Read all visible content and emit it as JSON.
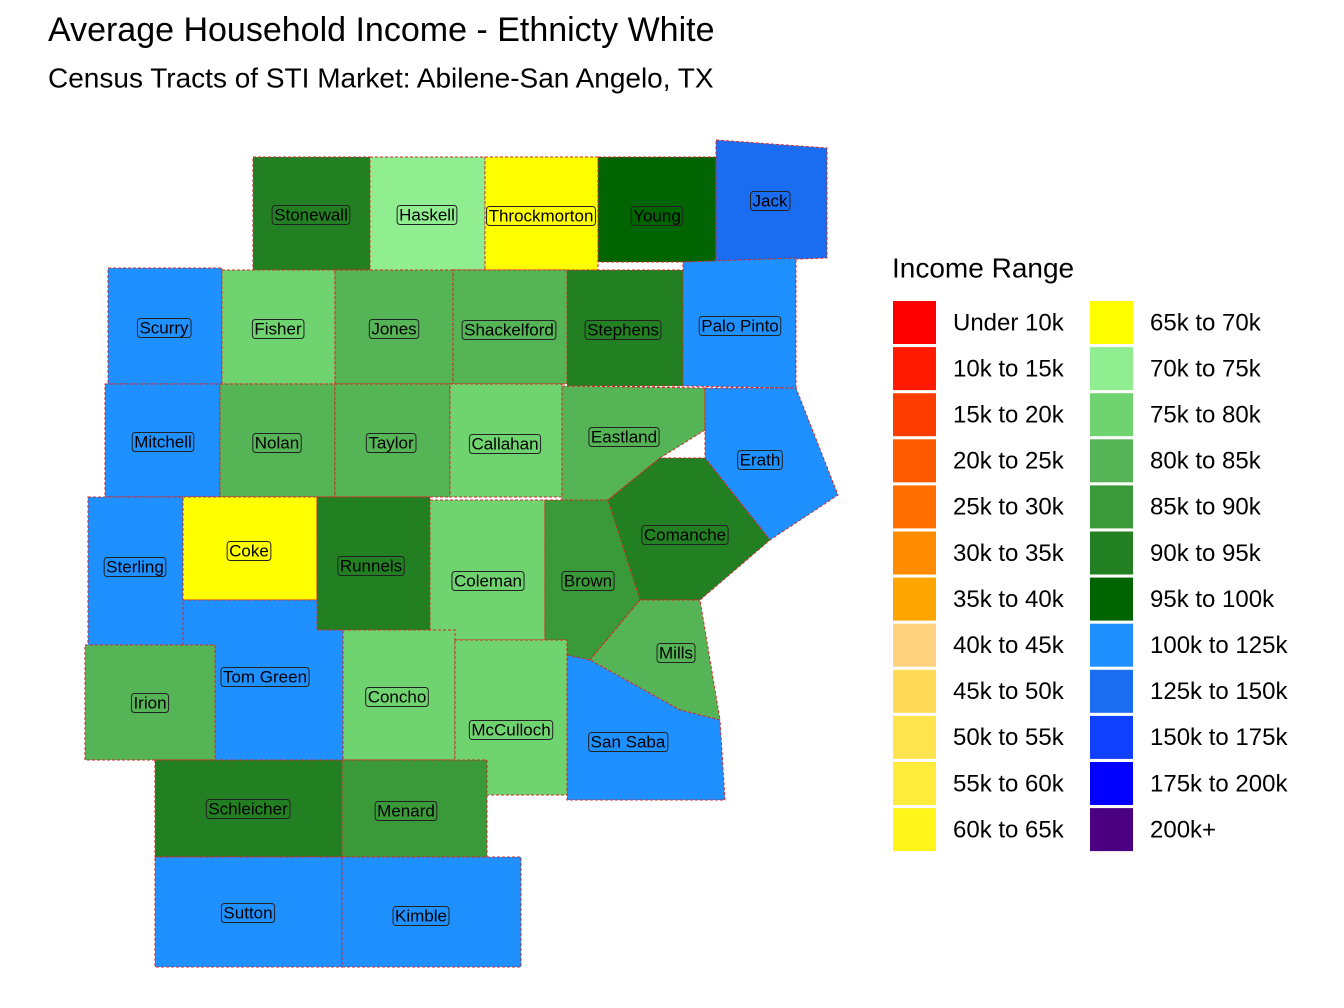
{
  "header": {
    "title": "Average Household Income - Ethnicty White",
    "subtitle": "Census Tracts of STI Market: Abilene-San Angelo, TX"
  },
  "legend": {
    "title": "Income Range",
    "entries": [
      {
        "label": "Under 10k",
        "color": "#ff0000"
      },
      {
        "label": "10k to 15k",
        "color": "#ff1a00"
      },
      {
        "label": "15k to 20k",
        "color": "#ff3d00"
      },
      {
        "label": "20k to 25k",
        "color": "#ff5a00"
      },
      {
        "label": "25k to 30k",
        "color": "#ff7000"
      },
      {
        "label": "30k to 35k",
        "color": "#ff8c00"
      },
      {
        "label": "35k to 40k",
        "color": "#ffa500"
      },
      {
        "label": "40k to 45k",
        "color": "#ffd27f"
      },
      {
        "label": "45k to 50k",
        "color": "#ffdb58"
      },
      {
        "label": "50k to 55k",
        "color": "#ffe44d"
      },
      {
        "label": "55k to 60k",
        "color": "#ffeb3b"
      },
      {
        "label": "60k to 65k",
        "color": "#fff51a"
      },
      {
        "label": "65k to 70k",
        "color": "#ffff00"
      },
      {
        "label": "70k to 75k",
        "color": "#90ee90"
      },
      {
        "label": "75k to 80k",
        "color": "#6fd36f"
      },
      {
        "label": "80k to 85k",
        "color": "#55b455"
      },
      {
        "label": "85k to 90k",
        "color": "#3a9a3a"
      },
      {
        "label": "90k to 95k",
        "color": "#228022"
      },
      {
        "label": "95k to 100k",
        "color": "#006400"
      },
      {
        "label": "100k to 125k",
        "color": "#1e90ff"
      },
      {
        "label": "125k to 150k",
        "color": "#1a6cf0"
      },
      {
        "label": "150k to 175k",
        "color": "#0f40ff"
      },
      {
        "label": "175k to 200k",
        "color": "#0000ff"
      },
      {
        "label": "200k+",
        "color": "#4b0082"
      }
    ]
  },
  "counties": [
    {
      "name": "Stonewall",
      "color": "#228022"
    },
    {
      "name": "Haskell",
      "color": "#90ee90"
    },
    {
      "name": "Throckmorton",
      "color": "#ffff00"
    },
    {
      "name": "Young",
      "color": "#006400"
    },
    {
      "name": "Jack",
      "color": "#1a6cf0"
    },
    {
      "name": "Scurry",
      "color": "#1e90ff"
    },
    {
      "name": "Fisher",
      "color": "#6fd36f"
    },
    {
      "name": "Jones",
      "color": "#55b455"
    },
    {
      "name": "Shackelford",
      "color": "#55b455"
    },
    {
      "name": "Stephens",
      "color": "#228022"
    },
    {
      "name": "Palo Pinto",
      "color": "#1e90ff"
    },
    {
      "name": "Mitchell",
      "color": "#1e90ff"
    },
    {
      "name": "Nolan",
      "color": "#55b455"
    },
    {
      "name": "Taylor",
      "color": "#55b455"
    },
    {
      "name": "Callahan",
      "color": "#6fd36f"
    },
    {
      "name": "Eastland",
      "color": "#55b455"
    },
    {
      "name": "Erath",
      "color": "#1e90ff"
    },
    {
      "name": "Comanche",
      "color": "#228022"
    },
    {
      "name": "Sterling",
      "color": "#1e90ff"
    },
    {
      "name": "Coke",
      "color": "#ffff00"
    },
    {
      "name": "Runnels",
      "color": "#228022"
    },
    {
      "name": "Coleman",
      "color": "#6fd36f"
    },
    {
      "name": "Brown",
      "color": "#3a9a3a"
    },
    {
      "name": "Mills",
      "color": "#55b455"
    },
    {
      "name": "Irion",
      "color": "#55b455"
    },
    {
      "name": "Tom Green",
      "color": "#1e90ff"
    },
    {
      "name": "Concho",
      "color": "#6fd36f"
    },
    {
      "name": "McCulloch",
      "color": "#6fd36f"
    },
    {
      "name": "San Saba",
      "color": "#1e90ff"
    },
    {
      "name": "Schleicher",
      "color": "#228022"
    },
    {
      "name": "Menard",
      "color": "#3a9a3a"
    },
    {
      "name": "Sutton",
      "color": "#1e90ff"
    },
    {
      "name": "Kimble",
      "color": "#1e90ff"
    }
  ]
}
